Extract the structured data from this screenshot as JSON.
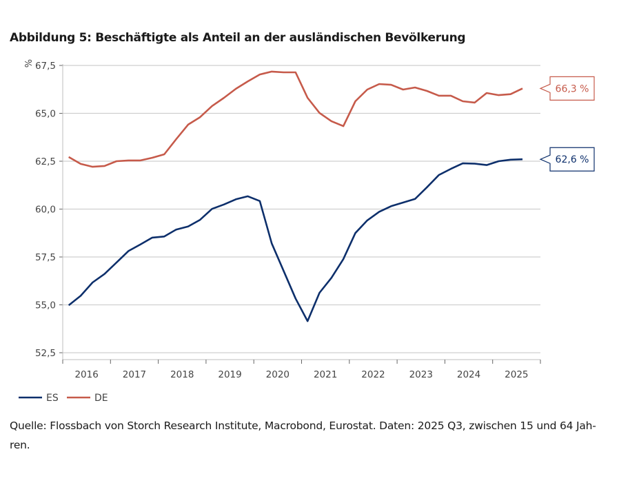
{
  "title": "Abbildung 5: Beschäftigte als Anteil an der ausländischen Bevölkerung",
  "source_lines": [
    "Quelle: Flossbach von Storch Research Institute, Macrobond, Eurostat. Daten: 2025 Q3, zwischen 15 und 64 Jah-",
    "ren."
  ],
  "chart_data": {
    "type": "line",
    "title": "Abbildung 5: Beschäftigte als Anteil an der ausländischen Bevölkerung",
    "xlabel": "",
    "ylabel": "%",
    "ylim": [
      52.5,
      67.5
    ],
    "yticks": [
      52.5,
      55.0,
      57.5,
      60.0,
      62.5,
      65.0,
      67.5
    ],
    "ytick_labels": [
      "52,5",
      "55,0",
      "57,5",
      "60,0",
      "62,5",
      "65,0",
      "67,5"
    ],
    "xtick_labels": [
      "2016",
      "2017",
      "2018",
      "2019",
      "2020",
      "2021",
      "2022",
      "2023",
      "2024",
      "2025"
    ],
    "x_start": "2016 Q1",
    "x_end": "2025 Q3",
    "frequency": "quarterly",
    "grid": true,
    "legend_placement": "bottom-left",
    "series": [
      {
        "name": "ES",
        "color": "#0d2f6b",
        "end_label": "62,6 %",
        "values": [
          54.98,
          55.47,
          56.17,
          56.61,
          57.21,
          57.81,
          58.15,
          58.51,
          58.57,
          58.93,
          59.09,
          59.44,
          60.01,
          60.24,
          60.51,
          60.67,
          60.42,
          58.21,
          56.77,
          55.33,
          54.15,
          55.63,
          56.41,
          57.39,
          58.75,
          59.41,
          59.86,
          60.15,
          60.34,
          60.53,
          61.14,
          61.78,
          62.1,
          62.39,
          62.37,
          62.3,
          62.5,
          62.58,
          62.6
        ]
      },
      {
        "name": "DE",
        "color": "#c65a4a",
        "end_label": "66,3 %",
        "values": [
          62.72,
          62.36,
          62.21,
          62.25,
          62.5,
          62.54,
          62.54,
          62.68,
          62.86,
          63.65,
          64.41,
          64.8,
          65.38,
          65.81,
          66.28,
          66.67,
          67.03,
          67.18,
          67.14,
          67.14,
          65.81,
          65.02,
          64.59,
          64.33,
          65.63,
          66.24,
          66.53,
          66.49,
          66.24,
          66.35,
          66.17,
          65.92,
          65.92,
          65.63,
          65.56,
          66.06,
          65.95,
          66.0,
          66.3
        ]
      }
    ]
  }
}
